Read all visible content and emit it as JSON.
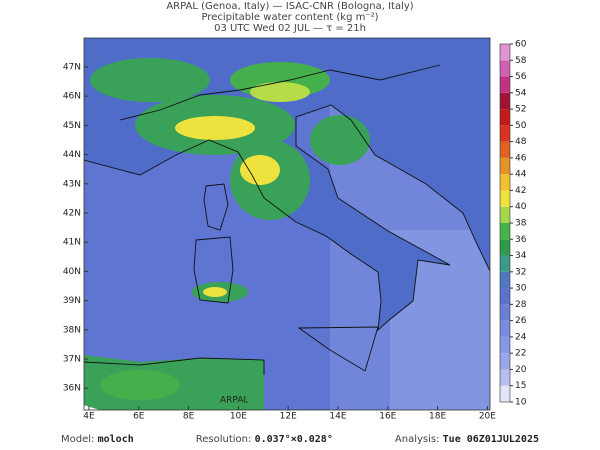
{
  "header": {
    "line1": "ARPAL (Genoa, Italy)  —  ISAC-CNR (Bologna, Italy)",
    "line2": "Precipitable water content (kg m⁻²)",
    "line3": "03 UTC Wed 02 JUL  —  τ = 21h"
  },
  "map": {
    "lat_ticks": [
      {
        "value": 47,
        "label": "47N"
      },
      {
        "value": 46,
        "label": "46N"
      },
      {
        "value": 45,
        "label": "45N"
      },
      {
        "value": 44,
        "label": "44N"
      },
      {
        "value": 43,
        "label": "43N"
      },
      {
        "value": 42,
        "label": "42N"
      },
      {
        "value": 41,
        "label": "41N"
      },
      {
        "value": 40,
        "label": "40N"
      },
      {
        "value": 39,
        "label": "39N"
      },
      {
        "value": 38,
        "label": "38N"
      },
      {
        "value": 37,
        "label": "37N"
      },
      {
        "value": 36,
        "label": "36N"
      }
    ],
    "lon_ticks": [
      {
        "value": 4,
        "label": "4E"
      },
      {
        "value": 6,
        "label": "6E"
      },
      {
        "value": 8,
        "label": "8E"
      },
      {
        "value": 10,
        "label": "10E"
      },
      {
        "value": 12,
        "label": "12E"
      },
      {
        "value": 14,
        "label": "14E"
      },
      {
        "value": 16,
        "label": "16E"
      },
      {
        "value": 18,
        "label": "18E"
      },
      {
        "value": 20,
        "label": "20E"
      }
    ],
    "watermark": "ARPAL"
  },
  "colorbar": {
    "levels": [
      10,
      15,
      20,
      22,
      24,
      26,
      28,
      30,
      32,
      34,
      36,
      38,
      40,
      42,
      44,
      46,
      48,
      50,
      52,
      54,
      56,
      58,
      60
    ],
    "colors": [
      "#e4e4f8",
      "#b6bff0",
      "#98a6ea",
      "#8798e4",
      "#788bde",
      "#6a7ed6",
      "#5d72cd",
      "#4e78c2",
      "#3c9a86",
      "#2f9a4c",
      "#47b448",
      "#a6d64c",
      "#eee23e",
      "#f0c032",
      "#e8922a",
      "#e06222",
      "#d63420",
      "#c01a1a",
      "#a01236",
      "#c03282",
      "#d062b2",
      "#e094d2"
    ]
  },
  "footer": {
    "model_label": "Model:",
    "model": "moloch",
    "resolution_label": "Resolution:",
    "resolution": "0.037°×0.028°",
    "analysis_label": "Analysis:",
    "analysis": "Tue 06Z01JUL2025"
  }
}
